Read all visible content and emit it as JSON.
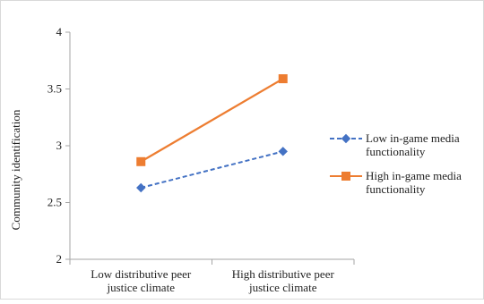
{
  "chart_data": {
    "type": "line",
    "ylabel": "Community identification",
    "xlabel": "",
    "ylim": [
      2,
      4
    ],
    "yticks": [
      "2",
      "2.5",
      "3",
      "3.5",
      "4"
    ],
    "categories": [
      [
        "Low distributive peer",
        "justice climate"
      ],
      [
        "High distributive peer",
        "justice climate"
      ]
    ],
    "series": [
      {
        "name": [
          "Low in-game media",
          "functionality"
        ],
        "values": [
          2.63,
          2.95
        ],
        "color": "#4472c4",
        "marker": "diamond",
        "dash": "dashed"
      },
      {
        "name": [
          "High in-game media",
          "functionality"
        ],
        "values": [
          2.86,
          3.59
        ],
        "color": "#ed7d31",
        "marker": "square",
        "dash": "solid"
      }
    ],
    "grid": false,
    "legend_position": "right"
  },
  "colors": {
    "axis": "#a6a6a6",
    "border": "#d9d9d9"
  }
}
